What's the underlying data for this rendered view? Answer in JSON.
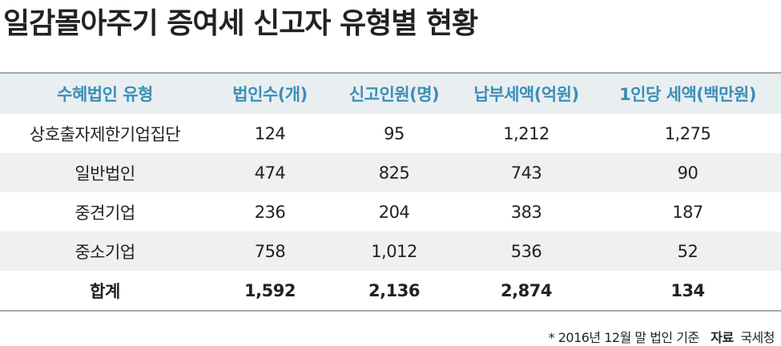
{
  "title": "일감몰아주기 증여세 신고자 유형별 현황",
  "table": {
    "header": [
      "수혜법인 유형",
      "법인수(개)",
      "신고인원(명)",
      "납부세액(억원)",
      "1인당 세액(백만원)"
    ],
    "rows": [
      [
        "상호출자제한기업집단",
        "124",
        "95",
        "1,212",
        "1,275"
      ],
      [
        "일반법인",
        "474",
        "825",
        "743",
        "90"
      ],
      [
        "중견기업",
        "236",
        "204",
        "383",
        "187"
      ],
      [
        "중소기업",
        "758",
        "1,012",
        "536",
        "52"
      ]
    ],
    "total": [
      "합계",
      "1,592",
      "2,136",
      "2,874",
      "134"
    ]
  },
  "footnote": {
    "note": "* 2016년 12월 말 법인 기준",
    "source_label": "자료",
    "source": "국세청"
  }
}
